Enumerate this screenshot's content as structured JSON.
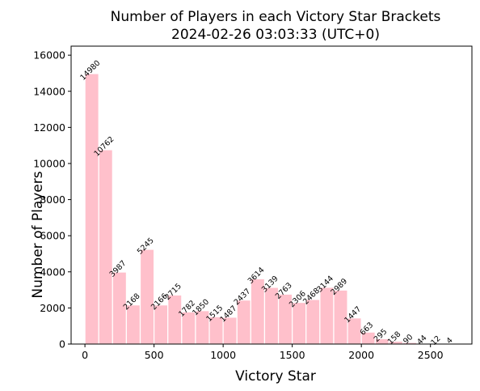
{
  "chart_data": {
    "type": "bar",
    "title": "Number of Players in each Victory Star Brackets",
    "subtitle": "2024-02-26 03:03:33 (UTC+0)",
    "xlabel": "Victory Star",
    "ylabel": "Number of Players",
    "xlim": [
      -100,
      2800
    ],
    "ylim": [
      0,
      16500
    ],
    "xticks": [
      0,
      500,
      1000,
      1500,
      2000,
      2500
    ],
    "yticks": [
      0,
      2000,
      4000,
      6000,
      8000,
      10000,
      12000,
      14000,
      16000
    ],
    "bin_width": 100,
    "bar_color": "#ffc0cb",
    "grid": false,
    "bars": [
      {
        "x": 0,
        "value": 14980
      },
      {
        "x": 100,
        "value": 10762
      },
      {
        "x": 200,
        "value": 3987
      },
      {
        "x": 300,
        "value": 2168
      },
      {
        "x": 400,
        "value": 5245
      },
      {
        "x": 500,
        "value": 2166
      },
      {
        "x": 600,
        "value": 2715
      },
      {
        "x": 700,
        "value": 1782
      },
      {
        "x": 800,
        "value": 1850
      },
      {
        "x": 900,
        "value": 1515
      },
      {
        "x": 1000,
        "value": 1487
      },
      {
        "x": 1100,
        "value": 2437
      },
      {
        "x": 1200,
        "value": 3614
      },
      {
        "x": 1300,
        "value": 3139
      },
      {
        "x": 1400,
        "value": 2763
      },
      {
        "x": 1500,
        "value": 2306
      },
      {
        "x": 1600,
        "value": 2468
      },
      {
        "x": 1700,
        "value": 3144
      },
      {
        "x": 1800,
        "value": 2989
      },
      {
        "x": 1900,
        "value": 1447
      },
      {
        "x": 2000,
        "value": 663
      },
      {
        "x": 2100,
        "value": 295
      },
      {
        "x": 2200,
        "value": 158
      },
      {
        "x": 2300,
        "value": 90
      },
      {
        "x": 2400,
        "value": 44
      },
      {
        "x": 2500,
        "value": 12
      },
      {
        "x": 2600,
        "value": 4
      }
    ]
  }
}
